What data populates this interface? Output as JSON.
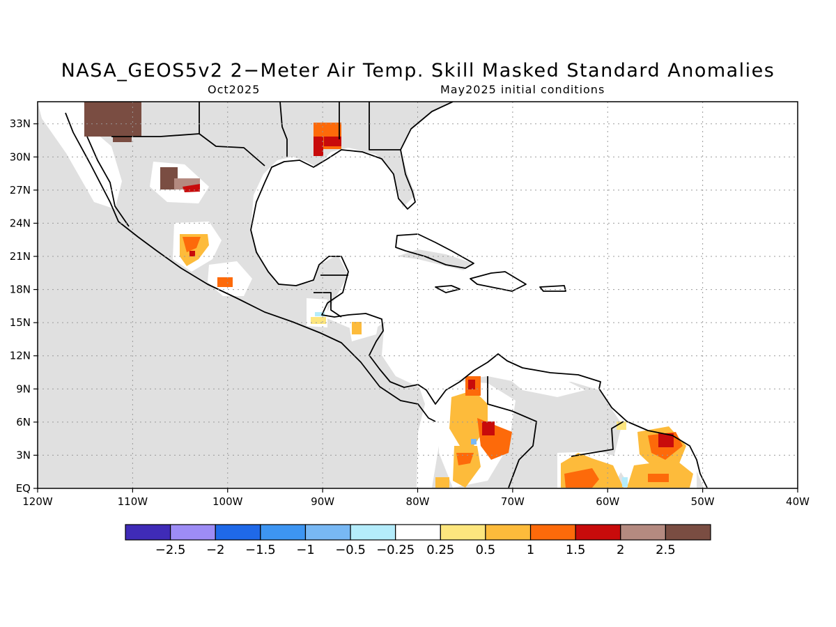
{
  "title": "NASA_GEOS5v2 2−Meter Air Temp. Skill Masked Standard Anomalies",
  "subtitle_left": "Oct2025",
  "subtitle_right": "May2025 initial conditions",
  "map": {
    "lon_range": [
      -120,
      -40
    ],
    "lat_range": [
      0,
      35
    ],
    "grid": "dotted",
    "lon_ticks": [
      {
        "value": -120,
        "label": "120W"
      },
      {
        "value": -110,
        "label": "110W"
      },
      {
        "value": -100,
        "label": "100W"
      },
      {
        "value": -90,
        "label": "90W"
      },
      {
        "value": -80,
        "label": "80W"
      },
      {
        "value": -70,
        "label": "70W"
      },
      {
        "value": -60,
        "label": "60W"
      },
      {
        "value": -50,
        "label": "50W"
      },
      {
        "value": -40,
        "label": "40W"
      }
    ],
    "lat_ticks": [
      {
        "value": 0,
        "label": "EQ"
      },
      {
        "value": 3,
        "label": "3N"
      },
      {
        "value": 6,
        "label": "6N"
      },
      {
        "value": 9,
        "label": "9N"
      },
      {
        "value": 12,
        "label": "12N"
      },
      {
        "value": 15,
        "label": "15N"
      },
      {
        "value": 18,
        "label": "18N"
      },
      {
        "value": 21,
        "label": "21N"
      },
      {
        "value": 24,
        "label": "24N"
      },
      {
        "value": 27,
        "label": "27N"
      },
      {
        "value": 30,
        "label": "30N"
      },
      {
        "value": 33,
        "label": "33N"
      }
    ],
    "masked_color": "#e0e0e0"
  },
  "colorbar": {
    "colors": [
      "#3f2bb7",
      "#9d8cf5",
      "#1f69e8",
      "#3d95f2",
      "#78b8f4",
      "#b4ecfb",
      "#ffffff",
      "#fde67e",
      "#fdbb3b",
      "#fd6a0a",
      "#c80b0b",
      "#b48a80",
      "#7a4d42"
    ],
    "labels": [
      "−2.5",
      "−2",
      "−1.5",
      "−1",
      "−0.5",
      "−0.25",
      "0.25",
      "0.5",
      "1",
      "1.5",
      "2",
      "2.5"
    ]
  }
}
